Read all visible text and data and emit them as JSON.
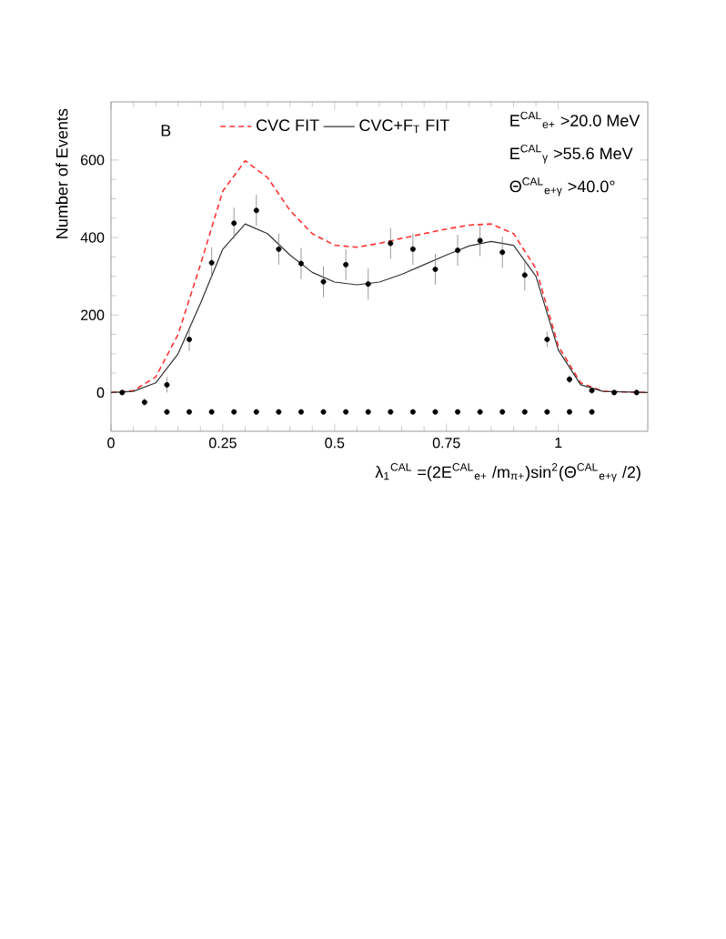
{
  "chart_data": {
    "type": "scatter",
    "xlabel": "λ$_{1}$$^{CAL}$ =(2E$^{CAL}$$_{e+}$ /m$_{π+}$)sin$^{2}$(Θ$^{CAL}$$_{e+γ}$ /2)",
    "ylabel": "Number of Events",
    "annotations": [
      "B",
      "E$^{CAL}$$_{e+}$ >20.0 MeV",
      "E$^{CAL}$$_{γ}$ >55.6 MeV",
      "Θ$^{CAL}$$_{e+γ}$ >40.0°"
    ],
    "xlim": [
      0,
      1.2
    ],
    "ylim": [
      -100,
      750
    ],
    "xticks": [
      0,
      0.25,
      0.5,
      0.75,
      1
    ],
    "yticks": [
      0,
      200,
      400,
      600
    ],
    "legend": "top",
    "series": [
      {
        "type": "line",
        "name": "CVC FIT",
        "color": "#ff3333",
        "line_style": "dashed",
        "marker": "none",
        "x": [
          0,
          0.05,
          0.1,
          0.15,
          0.2,
          0.25,
          0.3,
          0.35,
          0.4,
          0.45,
          0.5,
          0.55,
          0.6,
          0.65,
          0.7,
          0.75,
          0.8,
          0.85,
          0.9,
          0.95,
          1.0,
          1.05,
          1.1,
          1.2
        ],
        "values": [
          0,
          5,
          40,
          150,
          330,
          520,
          598,
          555,
          470,
          410,
          380,
          375,
          385,
          398,
          410,
          422,
          432,
          435,
          410,
          320,
          120,
          25,
          3,
          0
        ]
      },
      {
        "type": "line",
        "name": "CVC+F$_{T}$ FIT",
        "color": "#333333",
        "line_style": "solid",
        "marker": "none",
        "x": [
          0,
          0.05,
          0.1,
          0.15,
          0.2,
          0.25,
          0.3,
          0.35,
          0.4,
          0.45,
          0.5,
          0.55,
          0.6,
          0.65,
          0.7,
          0.75,
          0.8,
          0.85,
          0.9,
          0.95,
          1.0,
          1.05,
          1.1,
          1.2
        ],
        "values": [
          0,
          3,
          25,
          100,
          230,
          370,
          435,
          410,
          355,
          310,
          285,
          278,
          285,
          305,
          330,
          355,
          378,
          390,
          380,
          300,
          110,
          20,
          3,
          0
        ]
      },
      {
        "color": "#000000",
        "marker": "circle",
        "x": [
          0.025,
          0.075,
          0.125,
          0.175,
          0.225,
          0.275,
          0.325,
          0.375,
          0.425,
          0.475,
          0.525,
          0.575,
          0.625,
          0.675,
          0.725,
          0.775,
          0.825,
          0.875,
          0.925,
          0.975,
          1.025,
          1.075,
          1.125,
          1.175
        ],
        "values": [
          0,
          -25,
          20,
          137,
          335,
          437,
          470,
          370,
          333,
          286,
          330,
          280,
          385,
          370,
          318,
          367,
          392,
          362,
          303,
          137,
          34,
          5,
          0,
          0
        ],
        "errors": [
          null,
          10,
          20,
          30,
          40,
          40,
          40,
          40,
          40,
          40,
          40,
          40,
          40,
          40,
          40,
          40,
          40,
          40,
          40,
          20,
          10,
          null,
          null,
          null
        ]
      },
      {
        "color": "#000000",
        "marker": "circle",
        "x": [
          0.125,
          0.175,
          0.225,
          0.275,
          0.325,
          0.375,
          0.425,
          0.475,
          0.525,
          0.575,
          0.625,
          0.675,
          0.725,
          0.775,
          0.825,
          0.875,
          0.925,
          0.975,
          1.025,
          1.075
        ],
        "values": [
          -50,
          -50,
          -50,
          -50,
          -50,
          -50,
          -50,
          -50,
          -50,
          -50,
          -50,
          -50,
          -50,
          -50,
          -50,
          -50,
          -50,
          -50,
          -50,
          -50
        ]
      }
    ]
  }
}
